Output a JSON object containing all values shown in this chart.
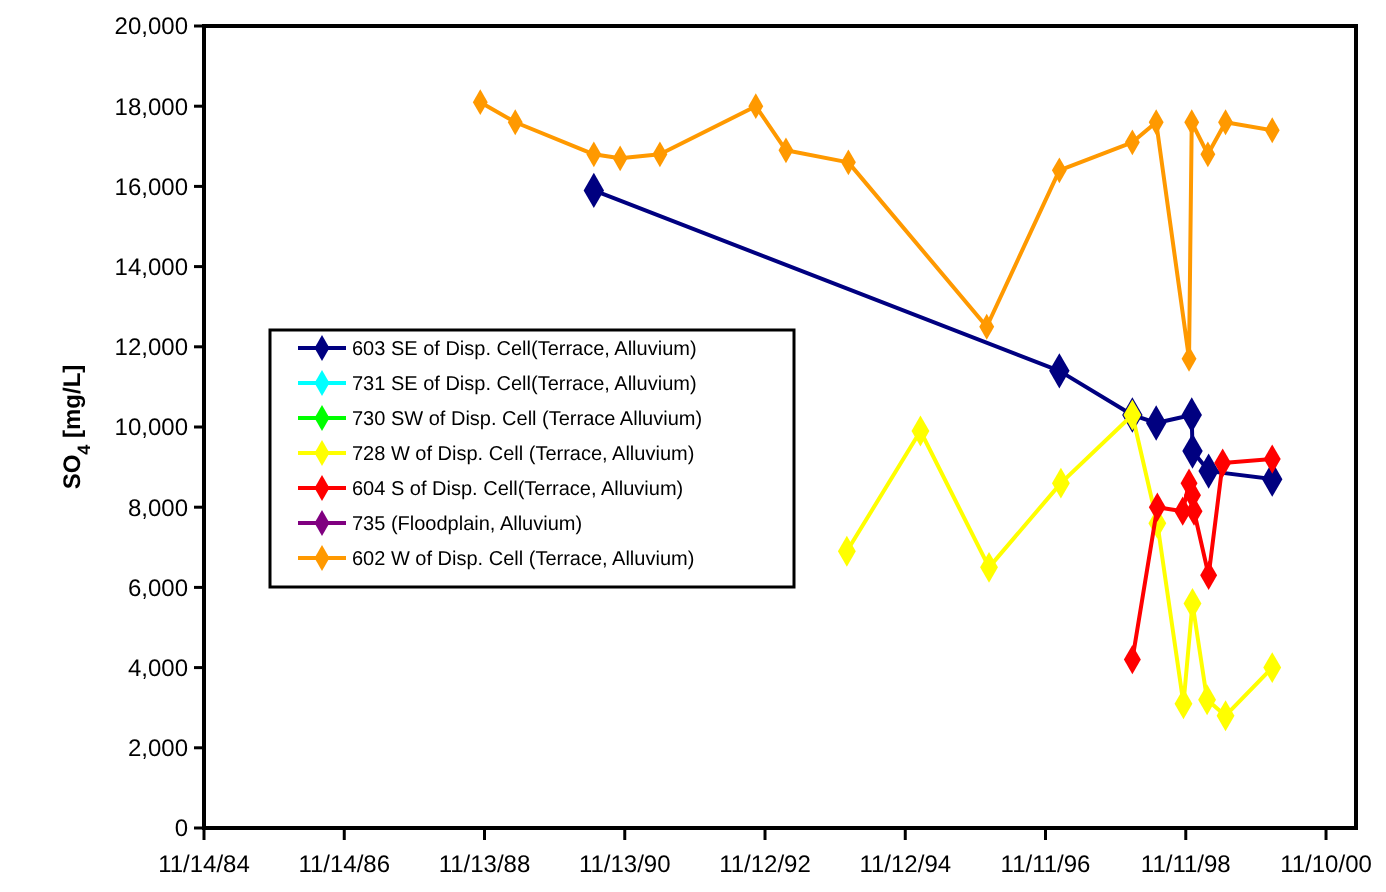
{
  "chart_data": {
    "type": "line",
    "ylabel": "SO$_{4}$ [mg/L]",
    "marker": "diamond",
    "line_style": "solid",
    "grid": false,
    "legend": "left",
    "xlim": [
      "1984-11-14",
      "2001-04-15"
    ],
    "xticks": [
      {
        "value": "1984-11-14",
        "label": "11/14/84"
      },
      {
        "value": "1986-11-14",
        "label": "11/14/86"
      },
      {
        "value": "1988-11-13",
        "label": "11/13/88"
      },
      {
        "value": "1990-11-13",
        "label": "11/13/90"
      },
      {
        "value": "1992-11-12",
        "label": "11/12/92"
      },
      {
        "value": "1994-11-12",
        "label": "11/12/94"
      },
      {
        "value": "1996-11-11",
        "label": "11/11/96"
      },
      {
        "value": "1998-11-11",
        "label": "11/11/98"
      },
      {
        "value": "2000-11-10",
        "label": "11/10/00"
      }
    ],
    "ylim": [
      0,
      20000
    ],
    "yticks": [
      0,
      {
        "value": 2000,
        "label": "2,000"
      },
      {
        "value": 4000,
        "label": "4,000"
      },
      {
        "value": 6000,
        "label": "6,000"
      },
      {
        "value": 8000,
        "label": "8,000"
      },
      {
        "value": 10000,
        "label": "10,000"
      },
      {
        "value": 12000,
        "label": "12,000"
      },
      {
        "value": 14000,
        "label": "14,000"
      },
      {
        "value": 16000,
        "label": "16,000"
      },
      {
        "value": 18000,
        "label": "18,000"
      },
      {
        "value": 20000,
        "label": "20,000"
      }
    ],
    "series": [
      {
        "name": "603 SE of Disp. Cell(Terrace, Alluvium)",
        "color": "#000080",
        "x": [
          "1990-06-05",
          "1997-01-22",
          "1998-02-06",
          "1998-06-10",
          "1998-12-12",
          "1998-12-16",
          "1999-03-10",
          "2000-02-04"
        ],
        "values": [
          15900,
          11400,
          10300,
          10100,
          10300,
          9400,
          8900,
          8700
        ]
      },
      {
        "name": "731 SE of Disp. Cell(Terrace, Alluvium)",
        "color": "#00ffff"
      },
      {
        "name": "730 SW of Disp. Cell (Terrace Alluvium)",
        "color": "#00ff00"
      },
      {
        "name": "728 W of Disp. Cell (Terrace, Alluvium)",
        "color": "#ffff00",
        "x": [
          "1994-01-12",
          "1995-01-30",
          "1996-01-22",
          "1997-01-30",
          "1998-02-06",
          "1998-06-16",
          "1998-10-30",
          "1998-12-16",
          "1999-03-02",
          "1999-06-06",
          "2000-02-04"
        ],
        "values": [
          6900,
          9900,
          6500,
          8600,
          10300,
          7600,
          3100,
          5600,
          3200,
          2800,
          4000
        ]
      },
      {
        "name": "604 S of Disp. Cell(Terrace, Alluvium)",
        "color": "#ff0000",
        "x": [
          "1998-02-06",
          "1998-06-16",
          "1998-10-26",
          "1998-11-28",
          "1998-12-16",
          "1998-12-24",
          "1999-03-10",
          "1999-05-22",
          "2000-02-04"
        ],
        "values": [
          4200,
          8000,
          7900,
          8600,
          8300,
          7900,
          6300,
          9100,
          9200
        ]
      },
      {
        "name": "735 (Floodplain, Alluvium)",
        "color": "#800080"
      },
      {
        "name": "602 W of Disp. Cell (Terrace, Alluvium)",
        "color": "#ff9900",
        "x": [
          "1988-10-22",
          "1989-04-22",
          "1990-06-05",
          "1990-10-20",
          "1991-05-15",
          "1992-09-25",
          "1993-03-01",
          "1994-01-20",
          "1996-01-10",
          "1997-01-22",
          "1998-02-06",
          "1998-06-10",
          "1998-11-28",
          "1998-12-12",
          "1999-03-06",
          "1999-06-06",
          "2000-02-04"
        ],
        "values": [
          18100,
          17600,
          16800,
          16700,
          16800,
          18000,
          16900,
          16600,
          12500,
          16400,
          17100,
          17600,
          11700,
          17600,
          16800,
          17600,
          17400
        ]
      }
    ]
  }
}
